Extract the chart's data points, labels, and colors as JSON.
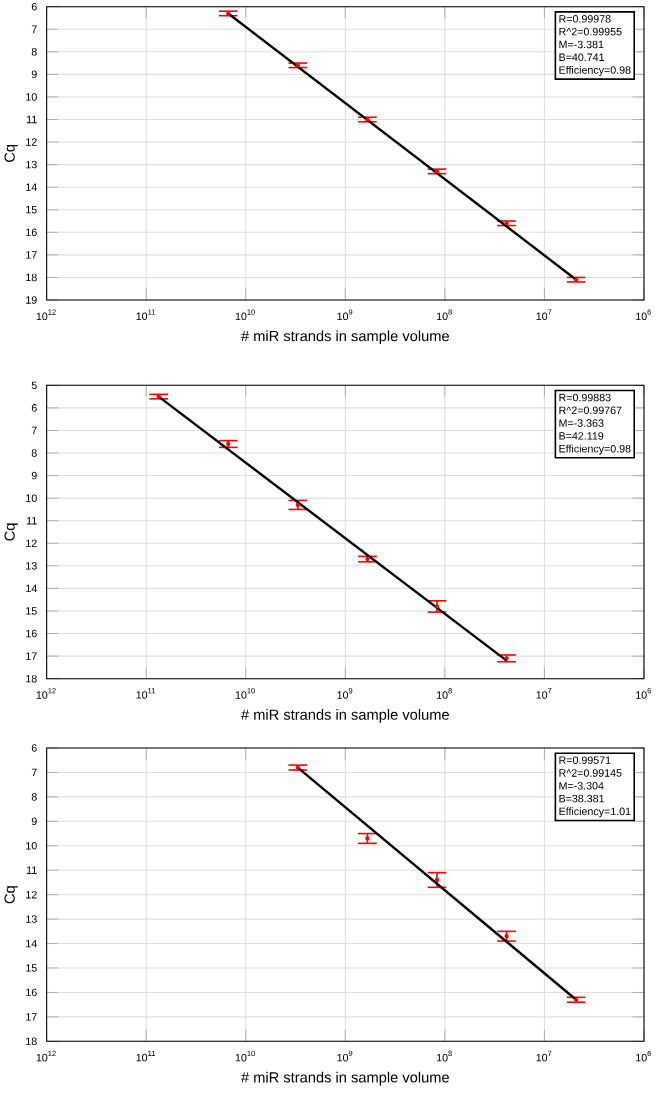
{
  "chart_data": [
    {
      "type": "scatter",
      "xlabel": "# miR strands in sample volume",
      "ylabel": "Cq",
      "log": "x",
      "grid": true,
      "marker": "none",
      "xlim": [
        1000000000000.0,
        1000000.0
      ],
      "ylim": [
        19,
        6
      ],
      "xticks": [
        {
          "value": 1000000000000.0,
          "label": "10$^{12}$"
        },
        {
          "value": 100000000000.0,
          "label": "10$^{11}$"
        },
        {
          "value": 10000000000.0,
          "label": "10$^{10}$"
        },
        {
          "value": 1000000000.0,
          "label": "10$^{9}$"
        },
        {
          "value": 100000000.0,
          "label": "10$^{8}$"
        },
        {
          "value": 10000000.0,
          "label": "10$^{7}$"
        },
        {
          "value": 1000000.0,
          "label": "10$^{6}$"
        }
      ],
      "yticks": [
        6,
        7,
        8,
        9,
        10,
        11,
        12,
        13,
        14,
        15,
        16,
        17,
        18,
        19
      ],
      "annotations": [
        "R=0.99978",
        "R^2=0.99955",
        "M=-3.381",
        "B=40.741",
        "Efficiency=0.98"
      ],
      "series": [
        {
          "color": "#ff0000",
          "x": [
            15000000000.0,
            3000000000.0,
            600000000.0,
            120000000.0,
            24000000.0,
            4800000.0
          ],
          "values": [
            6.3,
            8.6,
            11.0,
            13.3,
            15.6,
            18.1
          ],
          "errors": [
            0.1,
            0.1,
            0.1,
            0.1,
            0.1,
            0.1
          ]
        },
        {
          "type": "line",
          "color": "#000000",
          "x": [
            15000000000.0,
            4800000.0
          ],
          "values": [
            6.3,
            18.1
          ]
        }
      ]
    },
    {
      "type": "scatter",
      "xlabel": "# miR strands in sample volume",
      "ylabel": "Cq",
      "log": "x",
      "grid": true,
      "marker": "none",
      "xlim": [
        1000000000000.0,
        1000000.0
      ],
      "ylim": [
        18,
        5
      ],
      "xticks": [
        {
          "value": 1000000000000.0,
          "label": "10$^{12}$"
        },
        {
          "value": 100000000000.0,
          "label": "10$^{11}$"
        },
        {
          "value": 10000000000.0,
          "label": "10$^{10}$"
        },
        {
          "value": 1000000000.0,
          "label": "10$^{9}$"
        },
        {
          "value": 100000000.0,
          "label": "10$^{8}$"
        },
        {
          "value": 10000000.0,
          "label": "10$^{7}$"
        },
        {
          "value": 1000000.0,
          "label": "10$^{6}$"
        }
      ],
      "yticks": [
        5,
        6,
        7,
        8,
        9,
        10,
        11,
        12,
        13,
        14,
        15,
        16,
        17,
        18
      ],
      "annotations": [
        "R=0.99883",
        "R^2=0.99767",
        "M=-3.363",
        "B=42.119",
        "Efficiency=0.98"
      ],
      "series": [
        {
          "color": "#ff0000",
          "x": [
            75000000000.0,
            15000000000.0,
            3000000000.0,
            600000000.0,
            120000000.0,
            24000000.0
          ],
          "values": [
            5.5,
            7.6,
            10.3,
            12.7,
            14.8,
            17.1
          ],
          "errors": [
            0.1,
            0.15,
            0.2,
            0.12,
            0.25,
            0.15
          ]
        },
        {
          "type": "line",
          "color": "#000000",
          "x": [
            75000000000.0,
            24000000.0
          ],
          "values": [
            5.5,
            17.2
          ]
        }
      ]
    },
    {
      "type": "scatter",
      "xlabel": "# miR strands in sample volume",
      "ylabel": "Cq",
      "log": "x",
      "grid": true,
      "marker": "none",
      "xlim": [
        1000000000000.0,
        1000000.0
      ],
      "ylim": [
        18,
        6
      ],
      "xticks": [
        {
          "value": 1000000000000.0,
          "label": "10$^{12}$"
        },
        {
          "value": 100000000000.0,
          "label": "10$^{11}$"
        },
        {
          "value": 10000000000.0,
          "label": "10$^{10}$"
        },
        {
          "value": 1000000000.0,
          "label": "10$^{9}$"
        },
        {
          "value": 100000000.0,
          "label": "10$^{8}$"
        },
        {
          "value": 10000000.0,
          "label": "10$^{7}$"
        },
        {
          "value": 1000000.0,
          "label": "10$^{6}$"
        }
      ],
      "yticks": [
        6,
        7,
        8,
        9,
        10,
        11,
        12,
        13,
        14,
        15,
        16,
        17,
        18
      ],
      "annotations": [
        "R=0.99571",
        "R^2=0.99145",
        "M=-3.304",
        "B=38.381",
        "Efficiency=1.01"
      ],
      "series": [
        {
          "color": "#ff0000",
          "x": [
            3000000000.0,
            600000000.0,
            120000000.0,
            24000000.0,
            4800000.0
          ],
          "values": [
            6.8,
            9.7,
            11.4,
            13.7,
            16.3
          ],
          "errors": [
            0.1,
            0.2,
            0.3,
            0.2,
            0.1
          ]
        },
        {
          "type": "line",
          "color": "#000000",
          "x": [
            3000000000.0,
            4800000.0
          ],
          "values": [
            6.8,
            16.3
          ]
        }
      ]
    }
  ]
}
